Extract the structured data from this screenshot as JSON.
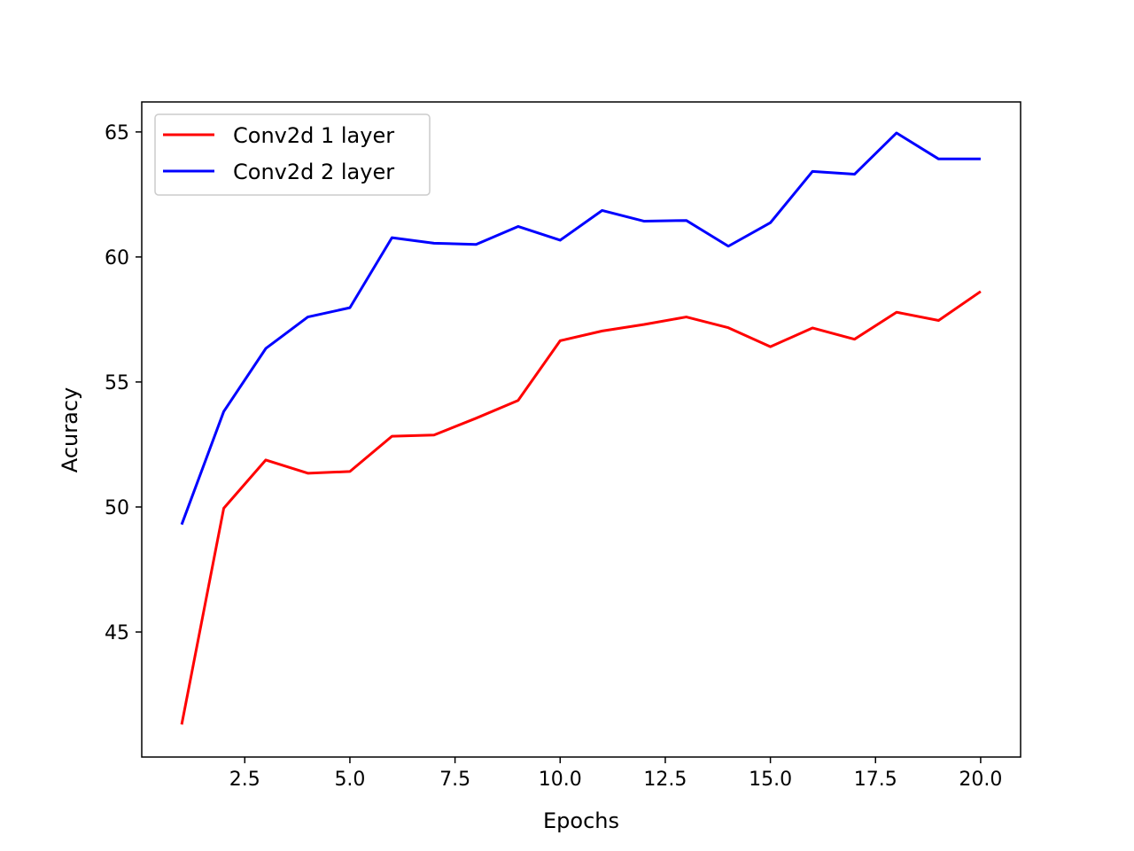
{
  "chart_data": {
    "type": "line",
    "title": "",
    "xlabel": "Epochs",
    "ylabel": "Acuracy",
    "xlim": [
      0.05,
      20.95
    ],
    "ylim": [
      40.0,
      66.2
    ],
    "xticks": [
      2.5,
      5.0,
      7.5,
      10.0,
      12.5,
      15.0,
      17.5,
      20.0
    ],
    "xtick_labels": [
      "2.5",
      "5.0",
      "7.5",
      "10.0",
      "12.5",
      "15.0",
      "17.5",
      "20.0"
    ],
    "yticks": [
      45,
      50,
      55,
      60,
      65
    ],
    "ytick_labels": [
      "45",
      "50",
      "55",
      "60",
      "65"
    ],
    "grid": false,
    "legend_position": "top-left",
    "x": [
      1,
      2,
      3,
      4,
      5,
      6,
      7,
      8,
      9,
      10,
      11,
      12,
      13,
      14,
      15,
      16,
      17,
      18,
      19,
      20
    ],
    "series": [
      {
        "name": "Conv2d 1 layer",
        "color": "#ff0000",
        "values": [
          41.3,
          49.95,
          51.88,
          51.35,
          51.42,
          52.83,
          52.88,
          53.55,
          54.26,
          56.65,
          57.04,
          57.3,
          57.6,
          57.17,
          56.41,
          57.16,
          56.71,
          57.79,
          57.46,
          58.62
        ]
      },
      {
        "name": "Conv2d 2 layer",
        "color": "#0000ff",
        "values": [
          49.3,
          53.82,
          56.34,
          57.6,
          57.97,
          60.77,
          60.55,
          60.5,
          61.22,
          60.67,
          61.86,
          61.43,
          61.46,
          60.43,
          61.37,
          63.42,
          63.31,
          64.96,
          63.92,
          63.92
        ]
      }
    ]
  }
}
